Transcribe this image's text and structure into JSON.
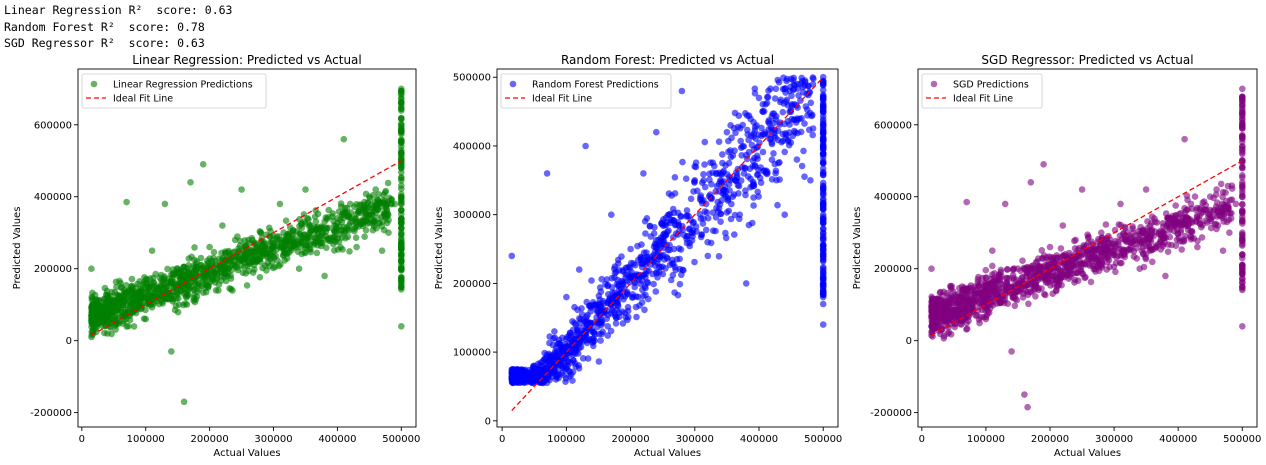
{
  "console_output": [
    "Linear Regression R²  score: 0.63",
    "Random Forest R²  score: 0.78",
    "SGD Regressor R²  score: 0.63"
  ],
  "chart_data": [
    {
      "type": "scatter",
      "title": "Linear Regression: Predicted vs Actual",
      "xlabel": "Actual Values",
      "ylabel": "Predicted Values",
      "xlim": [
        -6000,
        523000
      ],
      "ylim": [
        -240000,
        755000
      ],
      "xticks": [
        0,
        100000,
        200000,
        300000,
        400000,
        500000
      ],
      "xtick_labels": [
        "0",
        "100000",
        "200000",
        "300000",
        "400000",
        "500000"
      ],
      "yticks": [
        -200000,
        0,
        200000,
        400000,
        600000
      ],
      "ytick_labels": [
        "-200000",
        "0",
        "200000",
        "400000",
        "600000"
      ],
      "legend_position": "top-left",
      "series": [
        {
          "name": "Linear Regression Predictions",
          "color": "#008000",
          "kind": "scatter",
          "points": [
            [
              15000,
              200000
            ],
            [
              30000,
              60000
            ],
            [
              40000,
              20000
            ],
            [
              60000,
              120000
            ],
            [
              70000,
              385000
            ],
            [
              80000,
              80000
            ],
            [
              100000,
              160000
            ],
            [
              100000,
              60000
            ],
            [
              110000,
              250000
            ],
            [
              120000,
              120000
            ],
            [
              130000,
              380000
            ],
            [
              140000,
              -30000
            ],
            [
              150000,
              200000
            ],
            [
              160000,
              -170000
            ],
            [
              170000,
              440000
            ],
            [
              180000,
              220000
            ],
            [
              190000,
              490000
            ],
            [
              200000,
              260000
            ],
            [
              210000,
              140000
            ],
            [
              220000,
              320000
            ],
            [
              230000,
              200000
            ],
            [
              240000,
              280000
            ],
            [
              250000,
              420000
            ],
            [
              260000,
              240000
            ],
            [
              280000,
              300000
            ],
            [
              300000,
              260000
            ],
            [
              310000,
              380000
            ],
            [
              330000,
              300000
            ],
            [
              340000,
              200000
            ],
            [
              350000,
              420000
            ],
            [
              370000,
              300000
            ],
            [
              380000,
              180000
            ],
            [
              400000,
              340000
            ],
            [
              410000,
              560000
            ],
            [
              420000,
              380000
            ],
            [
              430000,
              260000
            ],
            [
              450000,
              400000
            ],
            [
              460000,
              420000
            ],
            [
              470000,
              250000
            ],
            [
              480000,
              300000
            ],
            [
              490000,
              380000
            ],
            [
              500000,
              700000
            ],
            [
              500000,
              600000
            ],
            [
              500000,
              500000
            ],
            [
              500000,
              400000
            ],
            [
              500000,
              300000
            ],
            [
              500000,
              200000
            ],
            [
              500000,
              150000
            ],
            [
              500000,
              40000
            ]
          ]
        },
        {
          "name": "Ideal Fit Line",
          "color": "#ff0000",
          "kind": "line",
          "points": [
            [
              15000,
              15000
            ],
            [
              500000,
              500000
            ]
          ]
        }
      ]
    },
    {
      "type": "scatter",
      "title": "Random Forest: Predicted vs Actual",
      "xlabel": "Actual Values",
      "ylabel": "Predicted Values",
      "xlim": [
        -8000,
        523000
      ],
      "ylim": [
        -9000,
        512000
      ],
      "xticks": [
        0,
        100000,
        200000,
        300000,
        400000,
        500000
      ],
      "xtick_labels": [
        "0",
        "100000",
        "200000",
        "300000",
        "400000",
        "500000"
      ],
      "yticks": [
        0,
        100000,
        200000,
        300000,
        400000,
        500000
      ],
      "ytick_labels": [
        "0",
        "100000",
        "200000",
        "300000",
        "400000",
        "500000"
      ],
      "legend_position": "top-left",
      "series": [
        {
          "name": "Random Forest Predictions",
          "color": "#0000ff",
          "kind": "scatter",
          "points": [
            [
              15000,
              240000
            ],
            [
              30000,
              60000
            ],
            [
              50000,
              80000
            ],
            [
              70000,
              360000
            ],
            [
              80000,
              120000
            ],
            [
              100000,
              180000
            ],
            [
              120000,
              220000
            ],
            [
              130000,
              400000
            ],
            [
              150000,
              160000
            ],
            [
              170000,
              300000
            ],
            [
              200000,
              250000
            ],
            [
              220000,
              360000
            ],
            [
              240000,
              420000
            ],
            [
              260000,
              300000
            ],
            [
              280000,
              480000
            ],
            [
              300000,
              350000
            ],
            [
              320000,
              260000
            ],
            [
              350000,
              420000
            ],
            [
              370000,
              300000
            ],
            [
              380000,
              200000
            ],
            [
              400000,
              470000
            ],
            [
              420000,
              380000
            ],
            [
              440000,
              300000
            ],
            [
              460000,
              490000
            ],
            [
              480000,
              350000
            ],
            [
              500000,
              500000
            ],
            [
              500000,
              450000
            ],
            [
              500000,
              400000
            ],
            [
              500000,
              300000
            ],
            [
              500000,
              250000
            ],
            [
              500000,
              170000
            ],
            [
              500000,
              140000
            ]
          ]
        },
        {
          "name": "Ideal Fit Line",
          "color": "#ff0000",
          "kind": "line",
          "points": [
            [
              15000,
              15000
            ],
            [
              500000,
              500000
            ]
          ]
        }
      ]
    },
    {
      "type": "scatter",
      "title": "SGD Regressor: Predicted vs Actual",
      "xlabel": "Actual Values",
      "ylabel": "Predicted Values",
      "xlim": [
        -6000,
        523000
      ],
      "ylim": [
        -240000,
        755000
      ],
      "xticks": [
        0,
        100000,
        200000,
        300000,
        400000,
        500000
      ],
      "xtick_labels": [
        "0",
        "100000",
        "200000",
        "300000",
        "400000",
        "500000"
      ],
      "yticks": [
        -200000,
        0,
        200000,
        400000,
        600000
      ],
      "ytick_labels": [
        "-200000",
        "0",
        "200000",
        "400000",
        "600000"
      ],
      "legend_position": "top-left",
      "series": [
        {
          "name": "SGD Predictions",
          "color": "#800080",
          "kind": "scatter",
          "points": [
            [
              15000,
              200000
            ],
            [
              30000,
              60000
            ],
            [
              40000,
              20000
            ],
            [
              60000,
              120000
            ],
            [
              70000,
              385000
            ],
            [
              80000,
              80000
            ],
            [
              100000,
              160000
            ],
            [
              100000,
              60000
            ],
            [
              110000,
              250000
            ],
            [
              120000,
              120000
            ],
            [
              130000,
              380000
            ],
            [
              140000,
              -30000
            ],
            [
              150000,
              200000
            ],
            [
              160000,
              -150000
            ],
            [
              165000,
              -185000
            ],
            [
              170000,
              440000
            ],
            [
              180000,
              220000
            ],
            [
              190000,
              490000
            ],
            [
              200000,
              260000
            ],
            [
              210000,
              140000
            ],
            [
              220000,
              320000
            ],
            [
              230000,
              200000
            ],
            [
              240000,
              280000
            ],
            [
              250000,
              420000
            ],
            [
              260000,
              240000
            ],
            [
              280000,
              300000
            ],
            [
              300000,
              260000
            ],
            [
              310000,
              380000
            ],
            [
              330000,
              300000
            ],
            [
              340000,
              200000
            ],
            [
              350000,
              420000
            ],
            [
              370000,
              300000
            ],
            [
              380000,
              180000
            ],
            [
              400000,
              340000
            ],
            [
              410000,
              560000
            ],
            [
              420000,
              380000
            ],
            [
              430000,
              260000
            ],
            [
              450000,
              400000
            ],
            [
              460000,
              420000
            ],
            [
              470000,
              250000
            ],
            [
              480000,
              300000
            ],
            [
              490000,
              380000
            ],
            [
              500000,
              700000
            ],
            [
              500000,
              600000
            ],
            [
              500000,
              500000
            ],
            [
              500000,
              400000
            ],
            [
              500000,
              300000
            ],
            [
              500000,
              200000
            ],
            [
              500000,
              150000
            ],
            [
              500000,
              40000
            ]
          ]
        },
        {
          "name": "Ideal Fit Line",
          "color": "#ff0000",
          "kind": "line",
          "points": [
            [
              15000,
              15000
            ],
            [
              500000,
              500000
            ]
          ]
        }
      ]
    }
  ]
}
